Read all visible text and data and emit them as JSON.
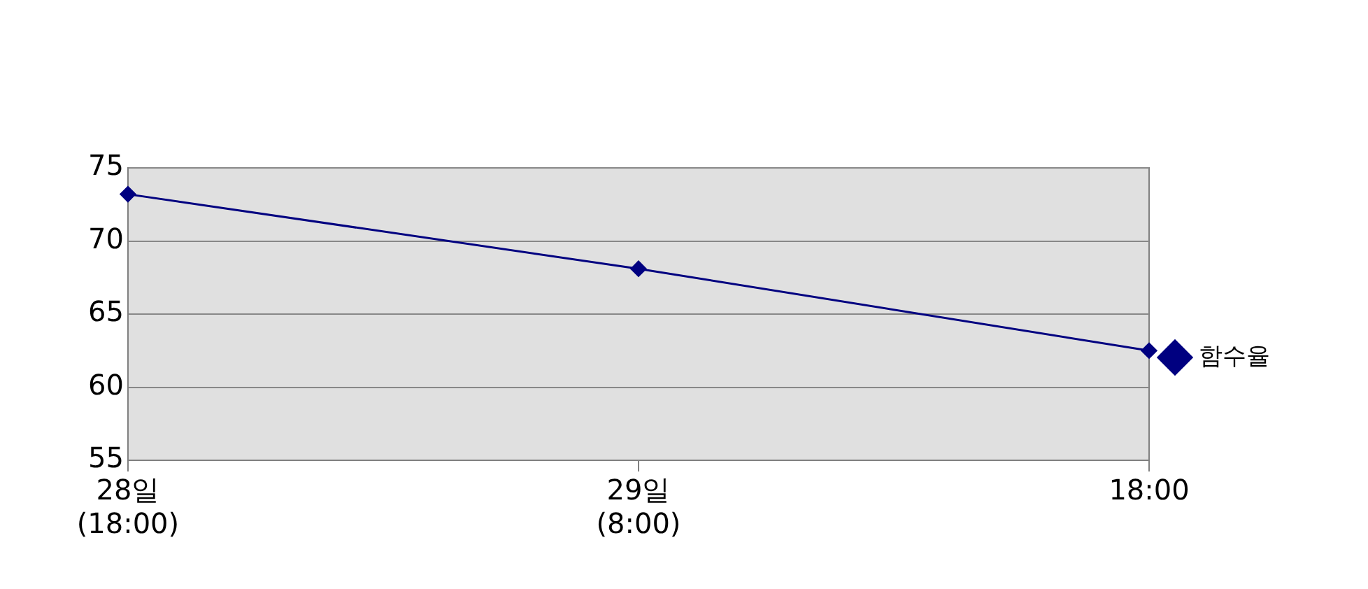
{
  "chart_data": {
    "type": "line",
    "categories": [
      "28일\n(18:00)",
      "29일\n(8:00)",
      "18:00"
    ],
    "series": [
      {
        "name": "함수율",
        "color": "#000080",
        "values": [
          73.2,
          68.1,
          62.5
        ]
      }
    ],
    "ylim": [
      55,
      75
    ],
    "yticks": [
      55,
      60,
      65,
      70,
      75
    ],
    "grid": "y",
    "legend": "right",
    "marker": "diamond",
    "line_style": "solid"
  }
}
